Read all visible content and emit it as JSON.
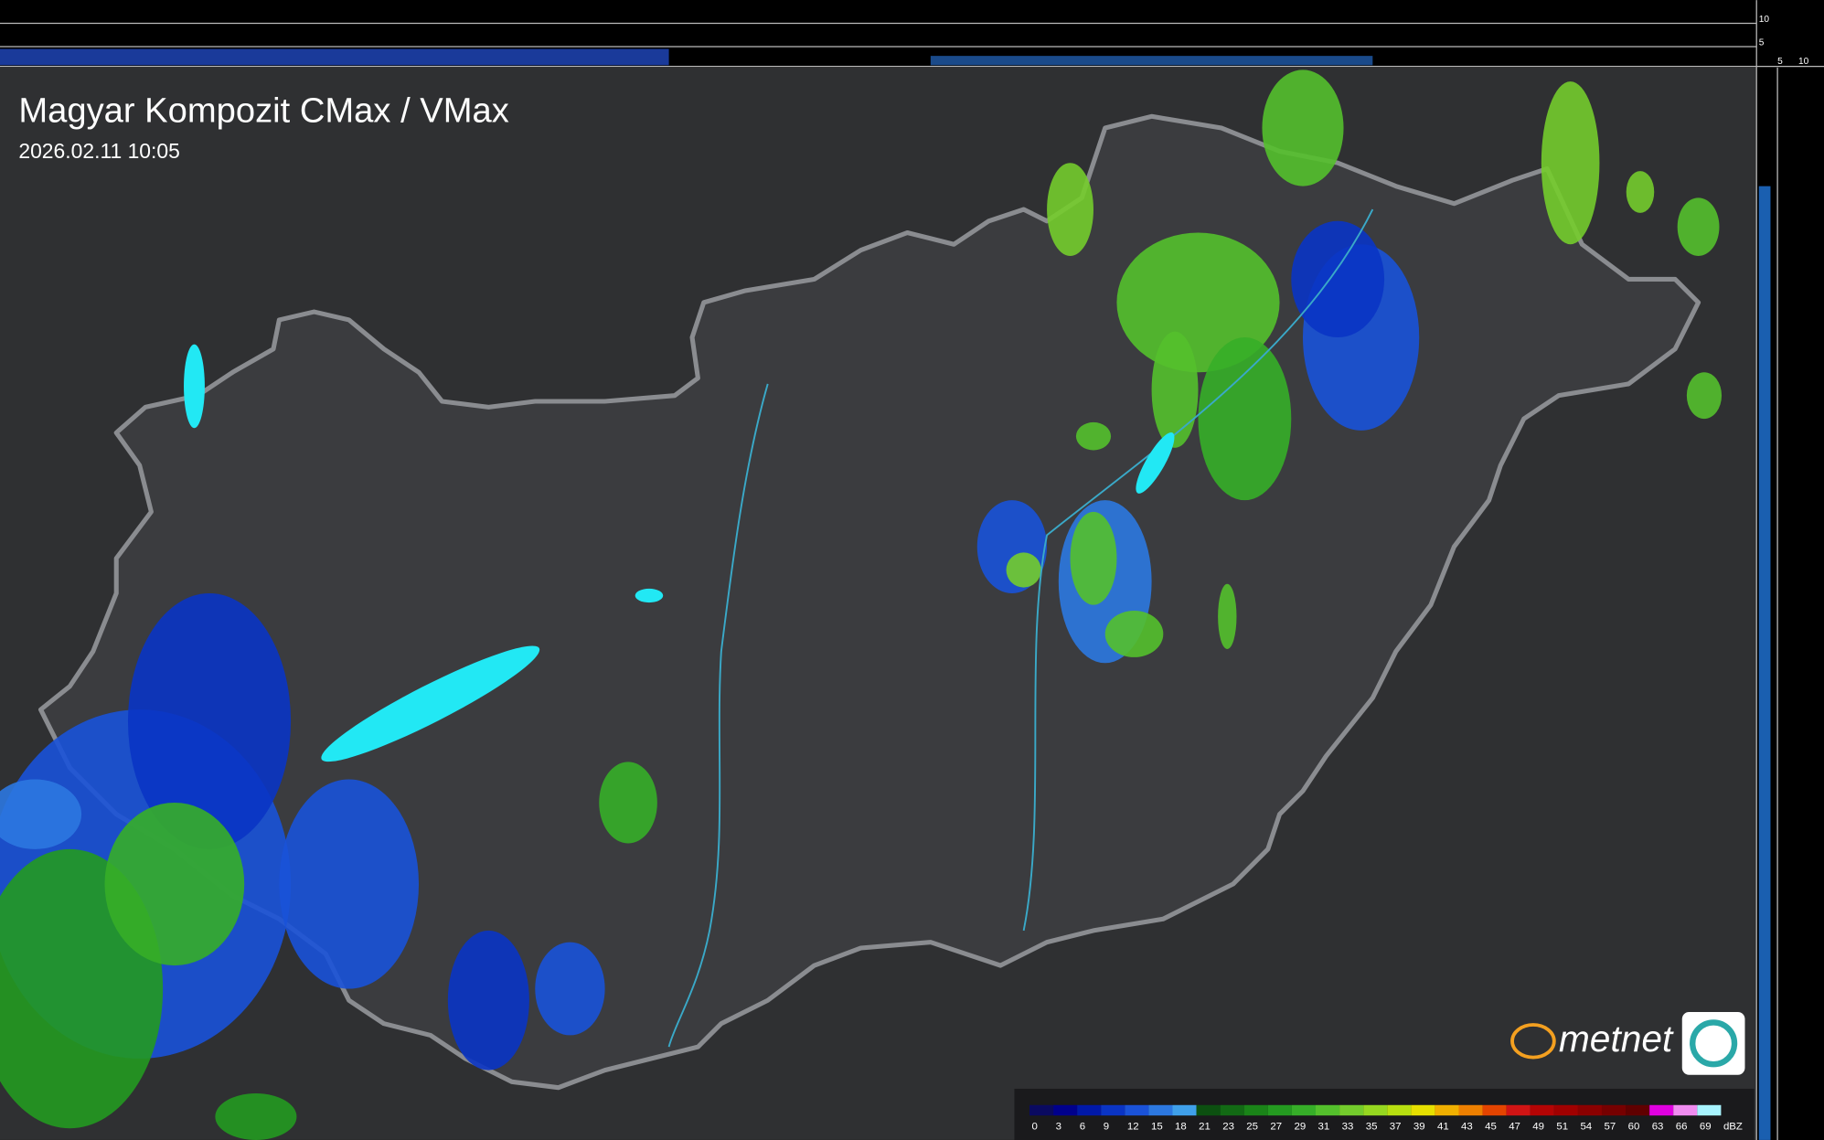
{
  "header": {
    "title": "Magyar Kompozit CMax / VMax",
    "timestamp": "2026.02.11 10:05"
  },
  "side_scale": {
    "top": [
      "10",
      "5"
    ],
    "bottom": [
      "5",
      "10"
    ]
  },
  "logo": "metnet",
  "legend": {
    "unit": "dBZ",
    "items": [
      {
        "label": "0",
        "color": "#0a0a60"
      },
      {
        "label": "3",
        "color": "#00008c"
      },
      {
        "label": "6",
        "color": "#0018a8"
      },
      {
        "label": "9",
        "color": "#0a34c4"
      },
      {
        "label": "12",
        "color": "#1a52d8"
      },
      {
        "label": "15",
        "color": "#2c78e0"
      },
      {
        "label": "18",
        "color": "#3fa0ea"
      },
      {
        "label": "21",
        "color": "#0c5010"
      },
      {
        "label": "23",
        "color": "#126a14"
      },
      {
        "label": "25",
        "color": "#1a8418"
      },
      {
        "label": "27",
        "color": "#249a20"
      },
      {
        "label": "29",
        "color": "#36ae28"
      },
      {
        "label": "31",
        "color": "#54c02c"
      },
      {
        "label": "33",
        "color": "#74cc2c"
      },
      {
        "label": "35",
        "color": "#96d820"
      },
      {
        "label": "37",
        "color": "#b8e010"
      },
      {
        "label": "39",
        "color": "#e6e000"
      },
      {
        "label": "41",
        "color": "#f0b000"
      },
      {
        "label": "43",
        "color": "#ee8000"
      },
      {
        "label": "45",
        "color": "#e44400"
      },
      {
        "label": "47",
        "color": "#d01414"
      },
      {
        "label": "49",
        "color": "#b40404"
      },
      {
        "label": "51",
        "color": "#a00000"
      },
      {
        "label": "54",
        "color": "#8a0000"
      },
      {
        "label": "57",
        "color": "#760000"
      },
      {
        "label": "60",
        "color": "#600000"
      },
      {
        "label": "63",
        "color": "#e000e0"
      },
      {
        "label": "66",
        "color": "#f08cf0"
      },
      {
        "label": "69",
        "color": "#a8f4ff"
      }
    ]
  }
}
